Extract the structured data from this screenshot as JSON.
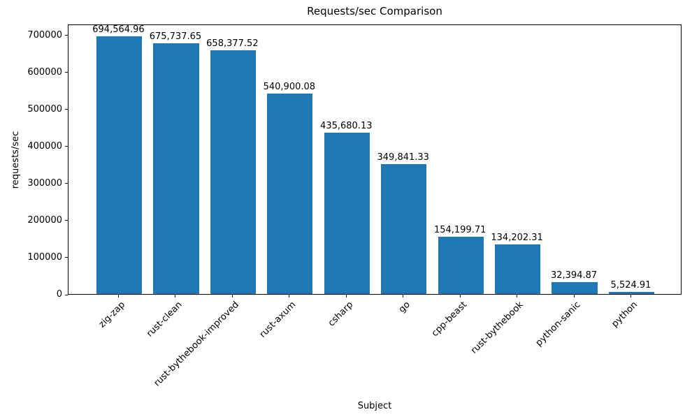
{
  "chart_data": {
    "type": "bar",
    "title": "Requests/sec Comparison",
    "xlabel": "Subject",
    "ylabel": "requests/sec",
    "categories": [
      "zig-zap",
      "rust-clean",
      "rust-bythebook-improved",
      "rust-axum",
      "csharp",
      "go",
      "cpp-beast",
      "rust-bythebook",
      "python-sanic",
      "python"
    ],
    "values": [
      694564.96,
      675737.65,
      658377.52,
      540900.08,
      435680.13,
      349841.33,
      154199.71,
      134202.31,
      32394.87,
      5524.91
    ],
    "value_labels": [
      "694,564.96",
      "675,737.65",
      "658,377.52",
      "540,900.08",
      "435,680.13",
      "349,841.33",
      "154,199.71",
      "134,202.31",
      "32,394.87",
      "5,524.91"
    ],
    "bar_color": "#1f77b4",
    "ylim": [
      0,
      729293
    ],
    "yticks": [
      0,
      100000,
      200000,
      300000,
      400000,
      500000,
      600000,
      700000
    ],
    "grid": false,
    "legend": null,
    "x_tick_rotation_deg": 45
  }
}
